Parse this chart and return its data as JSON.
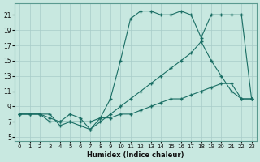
{
  "background_color": "#c8e8e0",
  "grid_color": "#a8ccc8",
  "line_color": "#1a6e64",
  "xlabel": "Humidex (Indice chaleur)",
  "xlim": [
    -0.5,
    23.5
  ],
  "ylim": [
    4.5,
    22.5
  ],
  "xticks": [
    0,
    1,
    2,
    3,
    4,
    5,
    6,
    7,
    8,
    9,
    10,
    11,
    12,
    13,
    14,
    15,
    16,
    17,
    18,
    19,
    20,
    21,
    22,
    23
  ],
  "yticks": [
    5,
    7,
    9,
    11,
    13,
    15,
    17,
    19,
    21
  ],
  "line1_x": [
    0,
    1,
    2,
    3,
    4,
    5,
    6,
    7,
    8,
    9,
    10,
    11,
    12,
    13,
    14,
    15,
    16,
    17,
    18,
    19,
    20,
    21,
    22,
    23
  ],
  "line1_y": [
    8,
    8,
    8,
    8,
    6.5,
    7,
    6.5,
    6,
    7.5,
    10,
    15,
    20.5,
    21.5,
    21.5,
    21,
    21,
    21.5,
    21,
    18,
    21,
    21,
    21,
    21,
    10
  ],
  "line2_x": [
    0,
    2,
    3,
    4,
    5,
    6,
    7,
    8,
    9,
    10,
    11,
    12,
    13,
    14,
    15,
    16,
    17,
    18,
    19,
    20,
    21,
    22,
    23
  ],
  "line2_y": [
    8,
    8,
    7,
    7,
    8,
    7.5,
    6,
    7,
    8,
    9,
    10,
    11,
    12,
    13,
    14,
    15,
    16,
    17.5,
    15,
    13,
    11,
    10,
    10
  ],
  "line3_x": [
    0,
    1,
    2,
    3,
    4,
    5,
    6,
    7,
    8,
    9,
    10,
    11,
    12,
    13,
    14,
    15,
    16,
    17,
    18,
    19,
    20,
    21,
    22,
    23
  ],
  "line3_y": [
    8,
    8,
    8,
    7.5,
    7,
    7,
    7,
    7,
    7.5,
    7.5,
    8,
    8,
    8.5,
    9,
    9.5,
    10,
    10,
    10.5,
    11,
    11.5,
    12,
    12,
    10,
    10
  ]
}
